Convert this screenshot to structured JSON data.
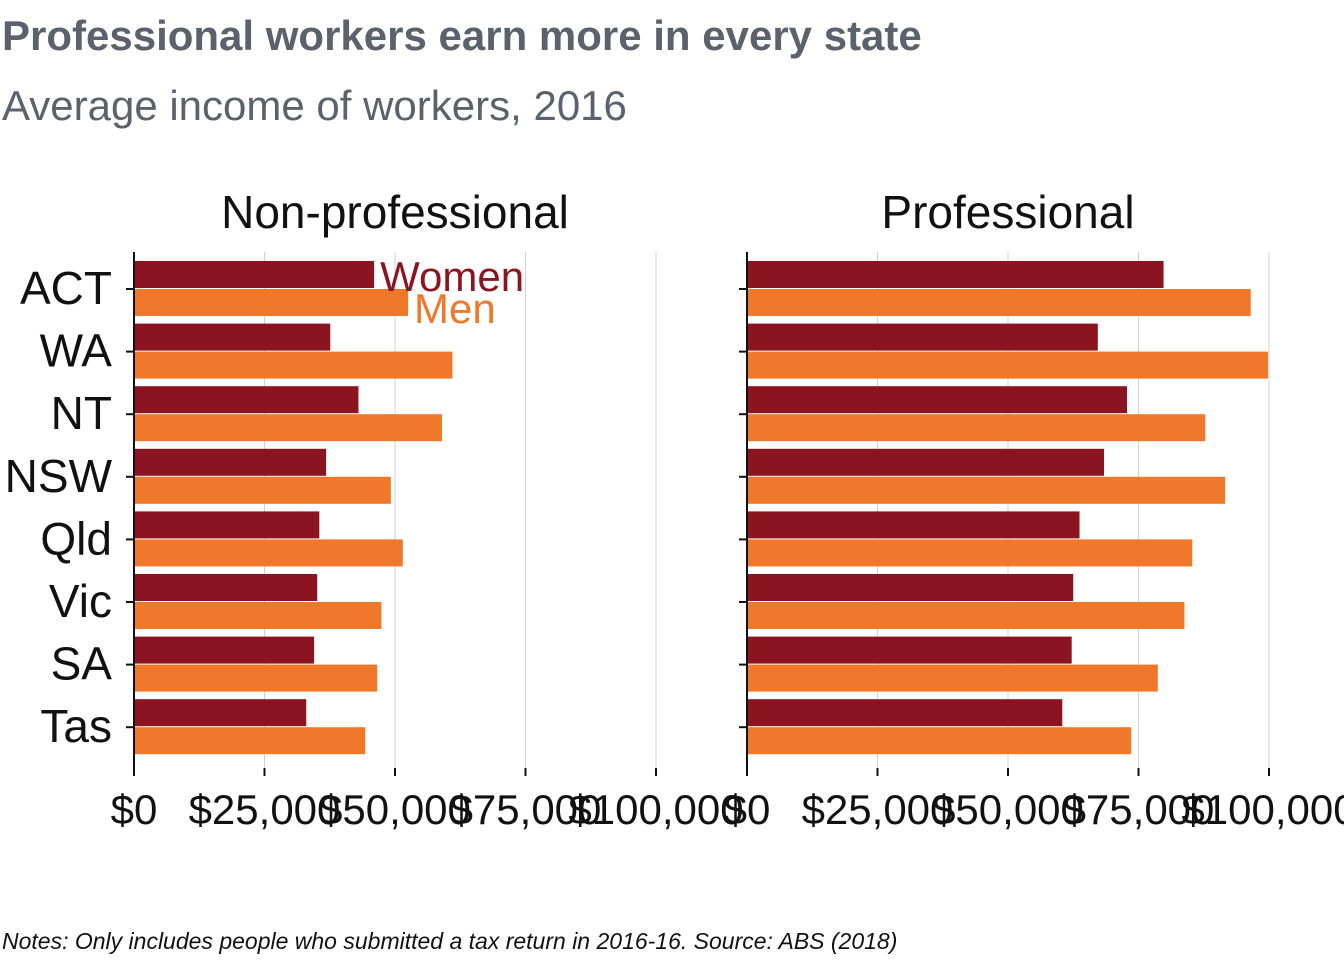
{
  "title": "Professional workers earn more in every state",
  "subtitle": "Average income of workers, 2016",
  "note": "Notes: Only includes people who submitted a tax return in 2016-16. Source: ABS (2018)",
  "colors": {
    "women": "#8b1420",
    "men": "#f0782a",
    "text": "#5b626b",
    "grid": "#d0d0d0"
  },
  "chart_data": {
    "type": "bar",
    "orientation": "horizontal",
    "categories": [
      "ACT",
      "WA",
      "NT",
      "NSW",
      "Qld",
      "Vic",
      "SA",
      "Tas"
    ],
    "xlim": [
      0,
      100000
    ],
    "x_ticks": [
      0,
      25000,
      50000,
      75000,
      100000
    ],
    "x_tick_labels": [
      "$0",
      "$25,000",
      "$50,000",
      "$75,000",
      "$100,000"
    ],
    "grid": true,
    "legend": "direct labels beside ACT bars in first panel",
    "panels": [
      {
        "name": "Non-professional",
        "series": [
          {
            "name": "Women",
            "values": [
              46000,
              37600,
              43000,
              36800,
              35500,
              35100,
              34500,
              33000
            ]
          },
          {
            "name": "Men",
            "values": [
              52500,
              61000,
              59000,
              49200,
              51500,
              47400,
              46600,
              44300
            ]
          }
        ]
      },
      {
        "name": "Professional",
        "series": [
          {
            "name": "Women",
            "values": [
              79800,
              67200,
              72800,
              68400,
              63700,
              62500,
              62200,
              60400
            ]
          },
          {
            "name": "Men",
            "values": [
              96500,
              99800,
              87800,
              91600,
              85300,
              83800,
              78700,
              73600
            ]
          }
        ]
      }
    ]
  }
}
